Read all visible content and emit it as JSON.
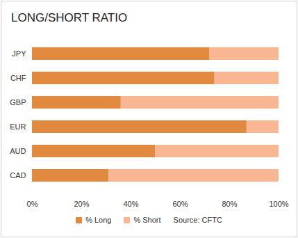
{
  "chart_data": {
    "type": "bar",
    "title": "LONG/SHORT RATIO",
    "orientation": "horizontal",
    "stacked": true,
    "categories": [
      "JPY",
      "CHF",
      "GBP",
      "EUR",
      "AUD",
      "CAD"
    ],
    "series": [
      {
        "name": "% Long",
        "color": "#e0893f",
        "values": [
          72,
          74,
          36,
          87,
          50,
          31
        ]
      },
      {
        "name": "% Short",
        "color": "#f8b692",
        "values": [
          28,
          26,
          64,
          13,
          50,
          69
        ]
      }
    ],
    "xlim": [
      0,
      100
    ],
    "xticks": [
      {
        "value": 0,
        "label": "0%"
      },
      {
        "value": 20,
        "label": "20%"
      },
      {
        "value": 40,
        "label": "40%"
      },
      {
        "value": 60,
        "label": "60%"
      },
      {
        "value": 80,
        "label": "80%"
      },
      {
        "value": 100,
        "label": "100%"
      }
    ],
    "grid": false,
    "legend": "bottom",
    "caption": "Source: CFTC"
  }
}
